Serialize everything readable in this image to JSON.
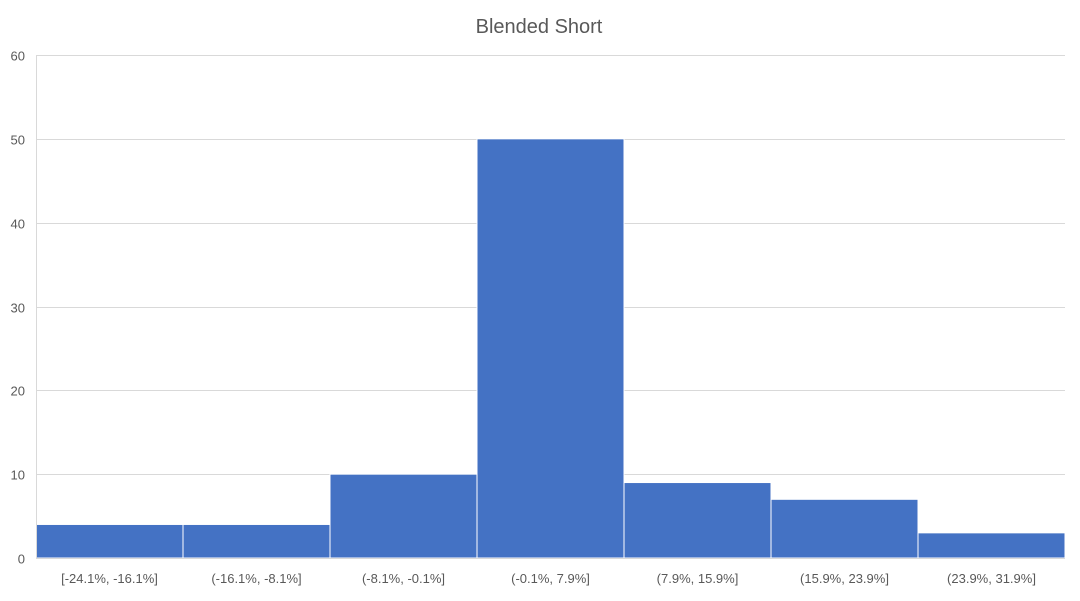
{
  "chart_data": {
    "type": "bar",
    "title": "Blended Short",
    "xlabel": "",
    "ylabel": "",
    "categories": [
      "[-24.1%, -16.1%]",
      "(-16.1%, -8.1%]",
      "(-8.1%, -0.1%]",
      "(-0.1%, 7.9%]",
      "(7.9%, 15.9%]",
      "(15.9%, 23.9%]",
      "(23.9%, 31.9%]"
    ],
    "values": [
      4,
      4,
      10,
      50,
      9,
      7,
      3
    ],
    "ylim": [
      0,
      60
    ],
    "yticks": [
      0,
      10,
      20,
      30,
      40,
      50,
      60
    ],
    "grid": true,
    "legend": "none",
    "bar_color": "#4472c4"
  }
}
